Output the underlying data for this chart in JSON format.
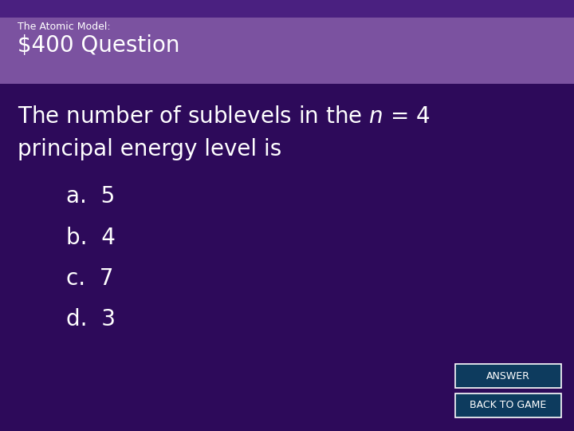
{
  "title_small": "The Atomic Model:",
  "title_large": "$400 Question",
  "header_bg_color": "#7B52A0",
  "main_bg_color": "#2D0A5A",
  "text_color": "#FFFFFF",
  "question_line1": "The number of sublevels in the $\\it{n}$ = 4",
  "question_line2": "principal energy level is",
  "choices": [
    "a.  5",
    "b.  4",
    "c.  7",
    "d.  3"
  ],
  "button1_text": "ANSWER",
  "button2_text": "BACK TO GAME",
  "button_bg": "#0D3B5E",
  "button_border": "#FFFFFF",
  "header_bg_color2": "#4A2080"
}
